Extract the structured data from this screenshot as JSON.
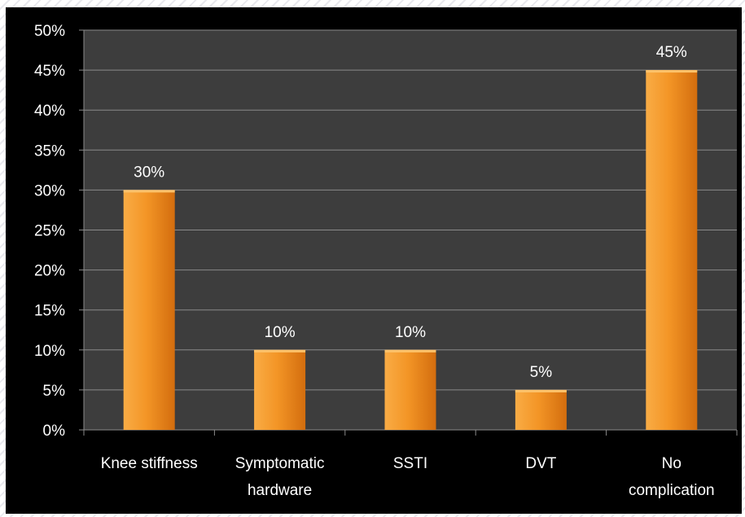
{
  "chart_data": {
    "type": "bar",
    "categories": [
      "Knee stiffness",
      "Symptomatic hardware",
      "SSTI",
      "DVT",
      "No complication"
    ],
    "category_lines": [
      [
        "Knee stiffness"
      ],
      [
        "Symptomatic",
        "hardware"
      ],
      [
        "SSTI"
      ],
      [
        "DVT"
      ],
      [
        "No",
        "complication"
      ]
    ],
    "values": [
      30,
      10,
      10,
      5,
      45
    ],
    "value_labels": [
      "30%",
      "10%",
      "10%",
      "5%",
      "45%"
    ],
    "ylim": [
      0,
      50
    ],
    "yticks": [
      0,
      5,
      10,
      15,
      20,
      25,
      30,
      35,
      40,
      45,
      50
    ],
    "ytick_labels": [
      "0%",
      "5%",
      "10%",
      "15%",
      "20%",
      "25%",
      "30%",
      "35%",
      "40%",
      "45%",
      "50%"
    ],
    "grid": true,
    "legend": "none",
    "colors": {
      "background": "#000000",
      "plot_area": "#3d3d3d",
      "grid": "#8a8a8a",
      "bar_light": "#f9ac45",
      "bar_mid": "#f39526",
      "bar_dark": "#d36d0e",
      "text": "#ffffff"
    }
  }
}
